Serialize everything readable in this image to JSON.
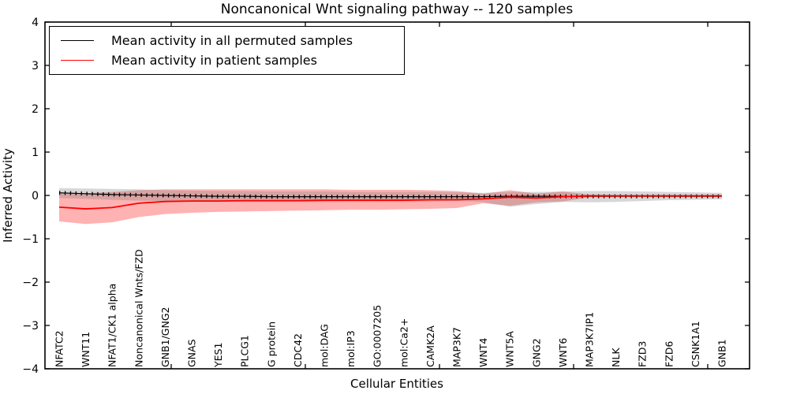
{
  "figure": {
    "title": "Noncanonical Wnt signaling pathway -- 120 samples",
    "xlabel": "Cellular Entities",
    "ylabel": "Inferred Activity"
  },
  "legend": {
    "items": [
      {
        "label": "Mean activity in all permuted samples",
        "color": "#000000"
      },
      {
        "label": "Mean activity in patient samples",
        "color": "#ff0000"
      }
    ]
  },
  "chart_data": {
    "type": "line",
    "title": "Noncanonical Wnt signaling pathway -- 120 samples",
    "xlabel": "Cellular Entities",
    "ylabel": "Inferred Activity",
    "ylim": [
      -4,
      4
    ],
    "yticks": [
      -4,
      -3,
      -2,
      -1,
      0,
      1,
      2,
      3,
      4
    ],
    "ytick_labels": [
      "−4",
      "−3",
      "−2",
      "−1",
      "0",
      "1",
      "2",
      "3",
      "4"
    ],
    "grid": false,
    "legend_position": "upper left",
    "categories": [
      "NFATC2",
      "WNT11",
      "NFAT1/CK1 alpha",
      "Noncanonical Wnts/FZD",
      "GNB1/GNG2",
      "GNAS",
      "YES1",
      "PLCG1",
      "G protein",
      "CDC42",
      "mol:DAG",
      "mol:IP3",
      "GO:0007205",
      "mol:Ca2+",
      "CAMK2A",
      "MAP3K7",
      "WNT4",
      "WNT5A",
      "GNG2",
      "WNT6",
      "MAP3K7IP1",
      "NLK",
      "FZD3",
      "FZD6",
      "CSNK1A1",
      "GNB1"
    ],
    "series": [
      {
        "name": "Mean activity in all permuted samples",
        "color": "#000000",
        "band_color": "rgba(130,130,130,0.32)",
        "values": [
          0.06,
          0.04,
          0.02,
          0.01,
          0.0,
          -0.01,
          -0.02,
          -0.02,
          -0.03,
          -0.03,
          -0.03,
          -0.03,
          -0.03,
          -0.03,
          -0.03,
          -0.03,
          -0.03,
          -0.02,
          -0.02,
          -0.02,
          -0.02,
          -0.02,
          -0.02,
          -0.02,
          -0.02,
          -0.02
        ],
        "band_upper": [
          0.17,
          0.16,
          0.15,
          0.14,
          0.12,
          0.11,
          0.1,
          0.1,
          0.09,
          0.09,
          0.09,
          0.08,
          0.08,
          0.08,
          0.08,
          0.07,
          0.06,
          0.08,
          0.08,
          0.09,
          0.1,
          0.1,
          0.09,
          0.08,
          0.07,
          0.06
        ],
        "band_lower": [
          -0.06,
          -0.08,
          -0.1,
          -0.12,
          -0.13,
          -0.14,
          -0.14,
          -0.15,
          -0.15,
          -0.15,
          -0.15,
          -0.14,
          -0.14,
          -0.14,
          -0.14,
          -0.13,
          -0.15,
          -0.26,
          -0.2,
          -0.15,
          -0.16,
          -0.15,
          -0.13,
          -0.11,
          -0.1,
          -0.09
        ]
      },
      {
        "name": "Mean activity in patient samples",
        "color": "#ff0000",
        "band_color": "rgba(255,0,0,0.30)",
        "values": [
          -0.27,
          -0.31,
          -0.28,
          -0.18,
          -0.14,
          -0.13,
          -0.13,
          -0.12,
          -0.12,
          -0.12,
          -0.11,
          -0.11,
          -0.11,
          -0.11,
          -0.1,
          -0.1,
          -0.08,
          -0.04,
          -0.06,
          -0.03,
          -0.01,
          -0.01,
          -0.01,
          -0.01,
          -0.01,
          -0.01
        ],
        "band_upper": [
          0.07,
          0.05,
          0.08,
          0.12,
          0.14,
          0.14,
          0.14,
          0.14,
          0.14,
          0.14,
          0.14,
          0.13,
          0.13,
          0.13,
          0.12,
          0.1,
          0.04,
          0.12,
          0.04,
          0.09,
          0.02,
          0.01,
          0.01,
          0.01,
          0.01,
          0.01
        ],
        "band_lower": [
          -0.6,
          -0.66,
          -0.62,
          -0.5,
          -0.43,
          -0.4,
          -0.38,
          -0.37,
          -0.36,
          -0.35,
          -0.34,
          -0.33,
          -0.33,
          -0.32,
          -0.31,
          -0.29,
          -0.18,
          -0.24,
          -0.16,
          -0.14,
          -0.04,
          -0.03,
          -0.03,
          -0.03,
          -0.03,
          -0.03
        ]
      }
    ]
  }
}
